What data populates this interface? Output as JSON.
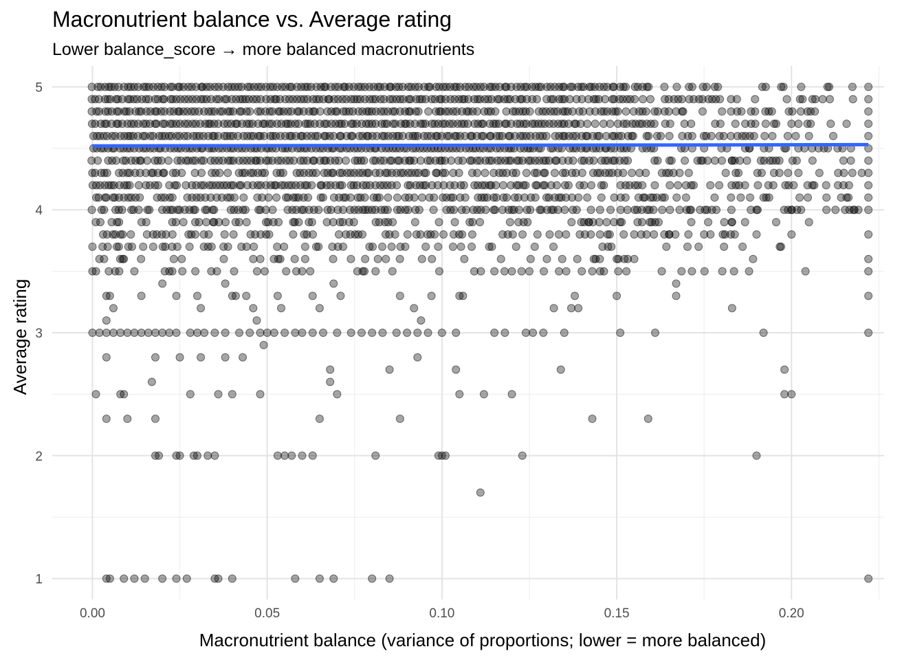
{
  "chart_data": {
    "type": "scatter",
    "title": "Macronutrient balance vs. Average rating",
    "subtitle": "Lower balance_score → more balanced macronutrients",
    "xlabel": "Macronutrient balance (variance of proportions; lower = more balanced)",
    "ylabel": "Average rating",
    "xlim": [
      -0.0115,
      0.2265
    ],
    "ylim": [
      0.83,
      5.17
    ],
    "x_ticks": [
      0.0,
      0.05,
      0.1,
      0.15,
      0.2
    ],
    "x_tick_labels": [
      "0.00",
      "0.05",
      "0.10",
      "0.15",
      "0.20"
    ],
    "y_ticks": [
      1,
      2,
      3,
      4,
      5
    ],
    "y_tick_labels": [
      "1",
      "2",
      "3",
      "4",
      "5"
    ],
    "grid": true,
    "point_color": "#000000",
    "point_opacity": 0.35,
    "trend_color": "#3366ff",
    "trend_line": {
      "x": [
        0.0,
        0.222
      ],
      "y": [
        4.52,
        4.53
      ]
    },
    "bands": [
      {
        "y": 5.0,
        "xmax": 0.222,
        "density": 1.0
      },
      {
        "y": 4.9,
        "xmax": 0.222,
        "density": 1.0
      },
      {
        "y": 4.8,
        "xmax": 0.222,
        "density": 0.95
      },
      {
        "y": 4.7,
        "xmax": 0.222,
        "density": 1.0
      },
      {
        "y": 4.6,
        "xmax": 0.222,
        "density": 1.0
      },
      {
        "y": 4.5,
        "xmax": 0.222,
        "density": 1.0
      },
      {
        "y": 4.4,
        "xmax": 0.222,
        "density": 0.9
      },
      {
        "y": 4.3,
        "xmax": 0.222,
        "density": 0.85
      },
      {
        "y": 4.2,
        "xmax": 0.222,
        "density": 0.8
      },
      {
        "y": 4.1,
        "xmax": 0.222,
        "density": 0.7
      },
      {
        "y": 4.0,
        "xmax": 0.222,
        "density": 0.75
      },
      {
        "y": 3.9,
        "xmax": 0.2,
        "density": 0.45
      },
      {
        "y": 3.8,
        "xmax": 0.2,
        "density": 0.4
      },
      {
        "y": 3.7,
        "xmax": 0.2,
        "density": 0.3
      },
      {
        "y": 3.6,
        "xmax": 0.16,
        "density": 0.2
      },
      {
        "y": 3.5,
        "xmax": 0.21,
        "density": 0.25
      }
    ],
    "points": [
      [
        0.222,
        5.0
      ],
      [
        0.222,
        4.9
      ],
      [
        0.222,
        4.8
      ],
      [
        0.222,
        4.7
      ],
      [
        0.222,
        4.6
      ],
      [
        0.222,
        4.5
      ],
      [
        0.222,
        4.4
      ],
      [
        0.222,
        4.3
      ],
      [
        0.222,
        4.2
      ],
      [
        0.222,
        4.1
      ],
      [
        0.222,
        4.0
      ],
      [
        0.222,
        3.8
      ],
      [
        0.222,
        3.6
      ],
      [
        0.222,
        3.5
      ],
      [
        0.222,
        3.3
      ],
      [
        0.222,
        3.0
      ],
      [
        0.222,
        1.0
      ],
      [
        0.0,
        3.7
      ],
      [
        0.002,
        3.6
      ],
      [
        0.0,
        3.5
      ],
      [
        0.001,
        3.5
      ],
      [
        0.004,
        3.3
      ],
      [
        0.005,
        3.3
      ],
      [
        0.006,
        3.2
      ],
      [
        0.004,
        3.1
      ],
      [
        0.009,
        3.6
      ],
      [
        0.012,
        3.5
      ],
      [
        0.014,
        3.3
      ],
      [
        0.02,
        3.4
      ],
      [
        0.022,
        3.5
      ],
      [
        0.024,
        3.3
      ],
      [
        0.03,
        3.3
      ],
      [
        0.031,
        3.2
      ],
      [
        0.034,
        3.5
      ],
      [
        0.038,
        3.4
      ],
      [
        0.04,
        3.3
      ],
      [
        0.041,
        3.3
      ],
      [
        0.044,
        3.3
      ],
      [
        0.046,
        3.2
      ],
      [
        0.047,
        3.1
      ],
      [
        0.049,
        2.9
      ],
      [
        0.053,
        3.3
      ],
      [
        0.054,
        3.2
      ],
      [
        0.06,
        3.5
      ],
      [
        0.063,
        3.3
      ],
      [
        0.065,
        3.2
      ],
      [
        0.069,
        3.4
      ],
      [
        0.071,
        3.3
      ],
      [
        0.081,
        3.5
      ],
      [
        0.088,
        3.3
      ],
      [
        0.092,
        3.2
      ],
      [
        0.094,
        3.1
      ],
      [
        0.097,
        3.3
      ],
      [
        0.105,
        3.3
      ],
      [
        0.106,
        3.3
      ],
      [
        0.115,
        3.5
      ],
      [
        0.12,
        3.5
      ],
      [
        0.125,
        3.5
      ],
      [
        0.13,
        3.6
      ],
      [
        0.14,
        3.5
      ],
      [
        0.138,
        3.3
      ],
      [
        0.132,
        3.2
      ],
      [
        0.137,
        3.2
      ],
      [
        0.139,
        3.2
      ],
      [
        0.15,
        3.3
      ],
      [
        0.15,
        3.6
      ],
      [
        0.155,
        3.6
      ],
      [
        0.167,
        3.4
      ],
      [
        0.167,
        3.3
      ],
      [
        0.183,
        3.2
      ],
      [
        0.189,
        3.6
      ],
      [
        0.204,
        3.5
      ],
      [
        0.0,
        3.0
      ],
      [
        0.002,
        3.0
      ],
      [
        0.004,
        3.0
      ],
      [
        0.006,
        3.0
      ],
      [
        0.008,
        3.0
      ],
      [
        0.01,
        3.0
      ],
      [
        0.012,
        3.0
      ],
      [
        0.014,
        3.0
      ],
      [
        0.016,
        3.0
      ],
      [
        0.018,
        3.0
      ],
      [
        0.02,
        3.0
      ],
      [
        0.022,
        3.0
      ],
      [
        0.024,
        3.0
      ],
      [
        0.028,
        3.0
      ],
      [
        0.03,
        3.0
      ],
      [
        0.032,
        3.0
      ],
      [
        0.035,
        3.0
      ],
      [
        0.038,
        3.0
      ],
      [
        0.042,
        3.0
      ],
      [
        0.045,
        3.0
      ],
      [
        0.048,
        3.0
      ],
      [
        0.05,
        3.0
      ],
      [
        0.052,
        3.0
      ],
      [
        0.055,
        3.0
      ],
      [
        0.058,
        3.0
      ],
      [
        0.06,
        3.0
      ],
      [
        0.063,
        3.0
      ],
      [
        0.066,
        3.0
      ],
      [
        0.07,
        3.0
      ],
      [
        0.074,
        3.0
      ],
      [
        0.077,
        3.0
      ],
      [
        0.08,
        3.0
      ],
      [
        0.083,
        3.0
      ],
      [
        0.087,
        3.0
      ],
      [
        0.09,
        3.0
      ],
      [
        0.093,
        3.0
      ],
      [
        0.096,
        3.0
      ],
      [
        0.1,
        3.0
      ],
      [
        0.104,
        3.0
      ],
      [
        0.115,
        3.0
      ],
      [
        0.118,
        3.0
      ],
      [
        0.124,
        3.0
      ],
      [
        0.126,
        3.0
      ],
      [
        0.129,
        3.0
      ],
      [
        0.135,
        3.0
      ],
      [
        0.151,
        3.0
      ],
      [
        0.161,
        3.0
      ],
      [
        0.192,
        3.0
      ],
      [
        0.004,
        2.8
      ],
      [
        0.018,
        2.8
      ],
      [
        0.025,
        2.8
      ],
      [
        0.031,
        2.8
      ],
      [
        0.038,
        2.8
      ],
      [
        0.043,
        2.8
      ],
      [
        0.085,
        2.7
      ],
      [
        0.093,
        2.8
      ],
      [
        0.068,
        2.7
      ],
      [
        0.068,
        2.6
      ],
      [
        0.104,
        2.7
      ],
      [
        0.134,
        2.7
      ],
      [
        0.198,
        2.7
      ],
      [
        0.017,
        2.6
      ],
      [
        0.001,
        2.5
      ],
      [
        0.008,
        2.5
      ],
      [
        0.009,
        2.5
      ],
      [
        0.028,
        2.5
      ],
      [
        0.036,
        2.5
      ],
      [
        0.04,
        2.5
      ],
      [
        0.048,
        2.5
      ],
      [
        0.07,
        2.5
      ],
      [
        0.105,
        2.5
      ],
      [
        0.112,
        2.5
      ],
      [
        0.12,
        2.5
      ],
      [
        0.198,
        2.5
      ],
      [
        0.2,
        2.5
      ],
      [
        0.004,
        2.3
      ],
      [
        0.01,
        2.3
      ],
      [
        0.018,
        2.3
      ],
      [
        0.065,
        2.3
      ],
      [
        0.088,
        2.3
      ],
      [
        0.143,
        2.3
      ],
      [
        0.159,
        2.3
      ],
      [
        0.018,
        2.0
      ],
      [
        0.019,
        2.0
      ],
      [
        0.024,
        2.0
      ],
      [
        0.025,
        2.0
      ],
      [
        0.029,
        2.0
      ],
      [
        0.03,
        2.0
      ],
      [
        0.033,
        2.0
      ],
      [
        0.035,
        2.0
      ],
      [
        0.053,
        2.0
      ],
      [
        0.055,
        2.0
      ],
      [
        0.057,
        2.0
      ],
      [
        0.06,
        2.0
      ],
      [
        0.063,
        2.0
      ],
      [
        0.081,
        2.0
      ],
      [
        0.099,
        2.0
      ],
      [
        0.101,
        2.0
      ],
      [
        0.1,
        2.0
      ],
      [
        0.123,
        2.0
      ],
      [
        0.19,
        2.0
      ],
      [
        0.111,
        1.7
      ],
      [
        0.004,
        1.0
      ],
      [
        0.005,
        1.0
      ],
      [
        0.009,
        1.0
      ],
      [
        0.012,
        1.0
      ],
      [
        0.015,
        1.0
      ],
      [
        0.02,
        1.0
      ],
      [
        0.024,
        1.0
      ],
      [
        0.027,
        1.0
      ],
      [
        0.035,
        1.0
      ],
      [
        0.036,
        1.0
      ],
      [
        0.04,
        1.0
      ],
      [
        0.058,
        1.0
      ],
      [
        0.065,
        1.0
      ],
      [
        0.069,
        1.0
      ],
      [
        0.08,
        1.0
      ],
      [
        0.085,
        1.0
      ],
      [
        0.2,
        4.7
      ],
      [
        0.21,
        4.0
      ],
      [
        0.218,
        4.0
      ],
      [
        0.205,
        3.9
      ],
      [
        0.2,
        3.8
      ],
      [
        0.206,
        4.2
      ],
      [
        0.21,
        4.1
      ],
      [
        0.197,
        3.7
      ],
      [
        0.186,
        3.7
      ],
      [
        0.19,
        3.8
      ],
      [
        0.183,
        3.9
      ],
      [
        0.175,
        3.8
      ],
      [
        0.181,
        3.8
      ],
      [
        0.19,
        4.0
      ],
      [
        0.2,
        4.0
      ],
      [
        0.192,
        4.1
      ],
      [
        0.165,
        3.8
      ],
      [
        0.16,
        3.9
      ],
      [
        0.17,
        4.0
      ],
      [
        0.155,
        3.8
      ],
      [
        0.163,
        4.0
      ],
      [
        0.157,
        3.8
      ],
      [
        0.142,
        3.9
      ],
      [
        0.145,
        3.9
      ],
      [
        0.148,
        3.8
      ],
      [
        0.152,
        3.8
      ],
      [
        0.178,
        4.1
      ],
      [
        0.172,
        4.2
      ],
      [
        0.185,
        4.2
      ],
      [
        0.195,
        4.3
      ],
      [
        0.215,
        4.3
      ],
      [
        0.188,
        4.5
      ],
      [
        0.198,
        4.5
      ],
      [
        0.205,
        4.6
      ],
      [
        0.175,
        4.5
      ],
      [
        0.168,
        4.3
      ],
      [
        0.176,
        4.4
      ],
      [
        0.183,
        4.4
      ]
    ]
  }
}
